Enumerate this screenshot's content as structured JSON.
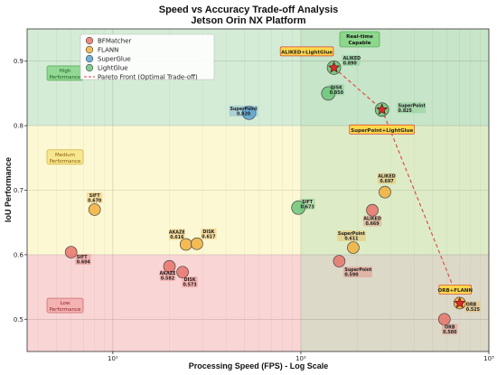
{
  "chart_data": {
    "type": "scatter",
    "title": "Speed vs Accuracy Trade-off Analysis",
    "subtitle": "Jetson Orin NX Platform",
    "xlabel": "Processing Speed (FPS) - Log Scale",
    "ylabel": "IoU Performance",
    "x_scale": "log",
    "xlim": [
      3.5,
      1000
    ],
    "ylim": [
      0.45,
      0.95
    ],
    "x_ticks": [
      10,
      100,
      1000
    ],
    "x_tick_labels": [
      "10¹",
      "10²",
      "10³"
    ],
    "y_ticks": [
      0.5,
      0.6,
      0.7,
      0.8,
      0.9
    ],
    "y_tick_labels": [
      "0.5",
      "0.6",
      "0.7",
      "0.8",
      "0.9"
    ],
    "grid": true,
    "legend_position": "top-left",
    "regions": [
      {
        "label": "High Performance",
        "y_range": [
          0.8,
          0.95
        ],
        "color": "#d4ecd6"
      },
      {
        "label": "Medium Performance",
        "y_range": [
          0.6,
          0.8
        ],
        "color": "#fbf8d3"
      },
      {
        "label": "Low Performance",
        "y_range": [
          0.45,
          0.6
        ],
        "color": "#f9d5d5"
      }
    ],
    "realtime_region": {
      "label": "Real-time Capable",
      "x_min": 100,
      "color": "#b9deb9"
    },
    "series": [
      {
        "name": "BFMatcher",
        "color": "#e8736b",
        "points": [
          {
            "x": 6,
            "y": 0.604,
            "label": "SIFT",
            "value": "0.604"
          },
          {
            "x": 20,
            "y": 0.582,
            "label": "AKAZE",
            "value": "0.582"
          },
          {
            "x": 23.5,
            "y": 0.573,
            "label": "DISK",
            "value": "0.573"
          },
          {
            "x": 240,
            "y": 0.669,
            "label": "ALIKED",
            "value": "0.669"
          },
          {
            "x": 160,
            "y": 0.59,
            "label": "SuperPoint",
            "value": "0.590"
          },
          {
            "x": 580,
            "y": 0.5,
            "label": "ORB",
            "value": "0.500"
          }
        ]
      },
      {
        "name": "FLANN",
        "color": "#f2b03d",
        "points": [
          {
            "x": 8,
            "y": 0.67,
            "label": "SIFT",
            "value": "0.670"
          },
          {
            "x": 24.5,
            "y": 0.616,
            "label": "AKAZE",
            "value": "0.616"
          },
          {
            "x": 28,
            "y": 0.617,
            "label": "DISK",
            "value": "0.617"
          },
          {
            "x": 280,
            "y": 0.697,
            "label": "ALIKED",
            "value": "0.697"
          },
          {
            "x": 190,
            "y": 0.611,
            "label": "SuperPoint",
            "value": "0.611"
          },
          {
            "x": 700,
            "y": 0.525,
            "label": "ORB",
            "value": "0.525"
          }
        ]
      },
      {
        "name": "SuperGlue",
        "color": "#5ba3d0",
        "points": [
          {
            "x": 53,
            "y": 0.82,
            "label": "SuperPoint",
            "value": "0.820"
          }
        ]
      },
      {
        "name": "LightGlue",
        "color": "#6cc47a",
        "points": [
          {
            "x": 97,
            "y": 0.673,
            "label": "SIFT",
            "value": "0.673"
          },
          {
            "x": 150,
            "y": 0.89,
            "label": "ALIKED",
            "value": "0.890"
          },
          {
            "x": 140,
            "y": 0.85,
            "label": "DISK",
            "value": "0.850"
          },
          {
            "x": 270,
            "y": 0.825,
            "label": "SuperPoint",
            "value": "0.825"
          }
        ]
      }
    ],
    "pareto_front": {
      "name": "Pareto Front (Optimal Trade-off)",
      "color": "#e04040",
      "points": [
        [
          150,
          0.89
        ],
        [
          270,
          0.825
        ],
        [
          700,
          0.525
        ]
      ]
    },
    "callouts": [
      {
        "text": "ALIKED+LightGlue",
        "x": 150,
        "y": 0.89
      },
      {
        "text": "SuperPoint+LightGlue",
        "x": 270,
        "y": 0.825
      },
      {
        "text": "ORB+FLANN",
        "x": 700,
        "y": 0.525
      }
    ]
  }
}
